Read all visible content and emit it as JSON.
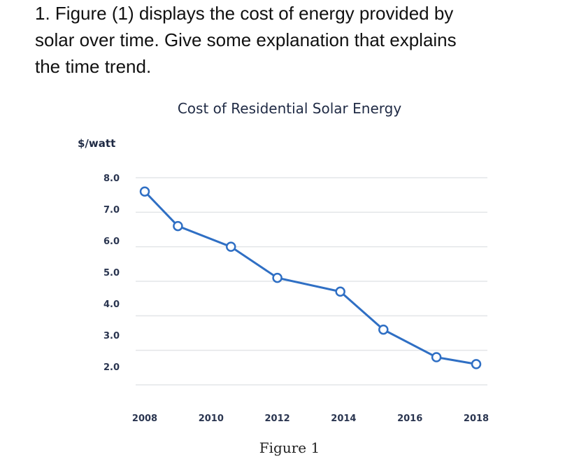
{
  "question": {
    "lines": [
      "1. Figure (1) displays the cost of energy provided by",
      "solar over time. Give some explanation that explains",
      "the time trend."
    ]
  },
  "caption": "Figure 1",
  "chart_data": {
    "type": "line",
    "title": "Cost of Residential Solar Energy",
    "ylabel": "$/watt",
    "xlabel": "",
    "ylim": [
      2.0,
      8.0
    ],
    "xlim": [
      2008,
      2018
    ],
    "yticks": [
      "8.0",
      "7.0",
      "6.0",
      "5.0",
      "4.0",
      "3.0",
      "2.0"
    ],
    "xticks": [
      "2008",
      "2010",
      "2012",
      "2014",
      "2016",
      "2018"
    ],
    "grid": "horizontal",
    "line_color": "#2f6fc4",
    "x": [
      2008,
      2009,
      2010.6,
      2012,
      2013.9,
      2015.2,
      2016.8,
      2018
    ],
    "values": [
      7.6,
      6.6,
      6.0,
      5.1,
      4.7,
      3.6,
      2.8,
      2.6
    ]
  }
}
